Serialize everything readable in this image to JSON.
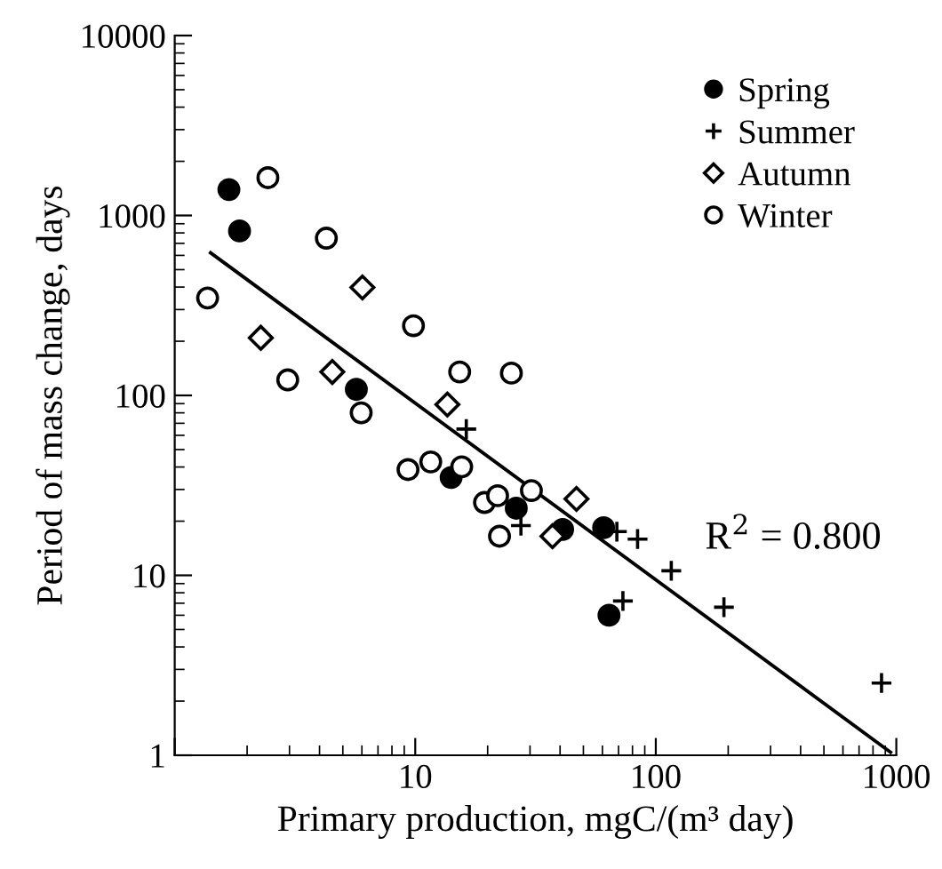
{
  "chart_data": {
    "type": "scatter",
    "xlabel": "Primary production, mgC/(m³ day)",
    "ylabel": "Period of mass change, days",
    "log": "xy",
    "xlim": [
      1,
      1000
    ],
    "ylim": [
      1,
      10000
    ],
    "xticks": [
      {
        "value": 1,
        "label": null
      },
      10,
      100,
      1000
    ],
    "yticks": [
      1,
      10,
      100,
      1000,
      10000
    ],
    "grid": false,
    "legend": "top right",
    "series": [
      {
        "name": "Spring",
        "color": "#000000",
        "marker": "circle",
        "x": [
          1.68,
          1.86,
          5.69,
          14.1,
          26.3,
          41,
          60.7,
          63.9
        ],
        "values": [
          1393,
          820,
          108,
          35,
          23.6,
          18,
          18.4,
          6.0
        ]
      },
      {
        "name": "Summer",
        "color": "#000000",
        "marker": "cross",
        "x": [
          16.3,
          27.5,
          68.9,
          84,
          116,
          192,
          73,
          868
        ],
        "values": [
          65,
          18.9,
          17.5,
          15.9,
          10.6,
          6.65,
          7.2,
          2.52
        ]
      },
      {
        "name": "Autumn",
        "color": "#000000",
        "marker": "diamond",
        "x": [
          2.28,
          4.52,
          6.03,
          13.6,
          37.2,
          46.8
        ],
        "values": [
          209,
          135,
          398,
          89,
          16.5,
          26.6
        ]
      },
      {
        "name": "Winter",
        "color": "#000000",
        "marker": "circle",
        "x": [
          1.37,
          2.44,
          2.95,
          4.27,
          5.96,
          9.33,
          9.83,
          11.6,
          15.3,
          15.6,
          19.4,
          22,
          22.4,
          25.1,
          30.4
        ],
        "values": [
          348,
          1622,
          122,
          748,
          80,
          38.7,
          244,
          42.7,
          135,
          40.1,
          25.4,
          27.7,
          16.5,
          133,
          29.6
        ]
      },
      {
        "type": "line",
        "color": "#000000",
        "line_style": "solid",
        "marker": "none",
        "x": [
          1.41,
          946
        ],
        "values": [
          620,
          1.04
        ]
      }
    ],
    "annotations": [
      "R$^{2}$ = 0.800"
    ]
  }
}
